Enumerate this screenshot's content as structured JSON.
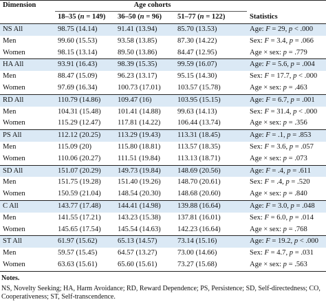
{
  "header": {
    "dimension": "Dimension",
    "age_cohorts": "Age cohorts",
    "statistics": "Statistics",
    "cohort_1": {
      "range": "18–35",
      "n_label": "n",
      "n_value": "149"
    },
    "cohort_2": {
      "range": "36–50",
      "n_label": "n",
      "n_value": "96"
    },
    "cohort_3": {
      "range": "51–77",
      "n_label": "n",
      "n_value": "122"
    }
  },
  "rows": [
    {
      "label": "NS All",
      "c1": "98.75 (14.14)",
      "c2": "91.41 (13.94)",
      "c3": "85.70 (13.53)",
      "stat_pre": "Age: ",
      "stat_var": "F",
      "stat_mid": " = 29, ",
      "stat_var2": "p",
      "stat_post": " < .000",
      "shade": true
    },
    {
      "label": "Men",
      "c1": "99.60 (15.53)",
      "c2": "93.58 (13.85)",
      "c3": "87.30 (14.22)",
      "stat_pre": "Sex: ",
      "stat_var": "F",
      "stat_mid": " = 3.4, ",
      "stat_var2": "p",
      "stat_post": " = .066",
      "shade": false
    },
    {
      "label": "Women",
      "c1": "98.15 (13.14)",
      "c2": "89.50 (13.86)",
      "c3": "84.47 (12.95)",
      "stat_pre": "Age × sex: ",
      "stat_var": "",
      "stat_mid": "",
      "stat_var2": "p",
      "stat_post": " = .779",
      "shade": false
    },
    {
      "label": "HA All",
      "c1": "93.91 (16.43)",
      "c2": "98.39 (15.35)",
      "c3": "99.59 (16.07)",
      "stat_pre": "Age: ",
      "stat_var": "F",
      "stat_mid": " = 5.6, ",
      "stat_var2": "p",
      "stat_post": " = .004",
      "shade": true
    },
    {
      "label": "Men",
      "c1": "88.47 (15.09)",
      "c2": "96.23 (13.17)",
      "c3": "95.15 (14.30)",
      "stat_pre": "Sex: ",
      "stat_var": "F",
      "stat_mid": " = 17.7, ",
      "stat_var2": "p",
      "stat_post": " < .000",
      "shade": false
    },
    {
      "label": "Women",
      "c1": "97.69 (16.34)",
      "c2": "100.73 (17.01)",
      "c3": "103.57 (15.78)",
      "stat_pre": "Age × sex: ",
      "stat_var": "",
      "stat_mid": "",
      "stat_var2": "p",
      "stat_post": " = .463",
      "shade": false
    },
    {
      "label": "RD All",
      "c1": "110.79 (14.86)",
      "c2": "109.47 (16)",
      "c3": "103.95 (15.15)",
      "stat_pre": "Age: ",
      "stat_var": "F",
      "stat_mid": " = 6.7, ",
      "stat_var2": "p",
      "stat_post": " = .001",
      "shade": true
    },
    {
      "label": "Men",
      "c1": "104.31 (15.48)",
      "c2": "101.41 (14.88)",
      "c3": "99.63 (14.13)",
      "stat_pre": "Sex: ",
      "stat_var": "F",
      "stat_mid": " = 31.4, ",
      "stat_var2": "p",
      "stat_post": " < .000",
      "shade": false
    },
    {
      "label": "Women",
      "c1": "115.29 (12.47)",
      "c2": "117.81 (14.22)",
      "c3": "106.44 (13.74)",
      "stat_pre": "Age × sex: ",
      "stat_var": "",
      "stat_mid": "",
      "stat_var2": "p",
      "stat_post": " = .356",
      "shade": false
    },
    {
      "label": "PS All",
      "c1": "112.12 (20.25)",
      "c2": "113.29 (19.43)",
      "c3": "113.31 (18.45)",
      "stat_pre": "Age: ",
      "stat_var": "F",
      "stat_mid": " = .1, ",
      "stat_var2": "p",
      "stat_post": " = .853",
      "shade": true
    },
    {
      "label": "Men",
      "c1": "115.09 (20)",
      "c2": "115.80 (18.81)",
      "c3": "113.57 (18.35)",
      "stat_pre": "Sex: ",
      "stat_var": "F",
      "stat_mid": " = 3.6, ",
      "stat_var2": "p",
      "stat_post": " = .057",
      "shade": false
    },
    {
      "label": "Women",
      "c1": "110.06 (20.27)",
      "c2": "111.51 (19.84)",
      "c3": "113.13 (18.71)",
      "stat_pre": "Age × sex: ",
      "stat_var": "",
      "stat_mid": "",
      "stat_var2": "p",
      "stat_post": " = .073",
      "shade": false
    },
    {
      "label": "SD All",
      "c1": "151.07 (20.29)",
      "c2": "149.73 (19.84)",
      "c3": "148.69 (20.56)",
      "stat_pre": "Age: ",
      "stat_var": "F",
      "stat_mid": " = .4, ",
      "stat_var2": "p",
      "stat_post": " = .611",
      "shade": true
    },
    {
      "label": "Men",
      "c1": "151.75 (19.28)",
      "c2": "151.40 (19.26)",
      "c3": "148.70 (20.61)",
      "stat_pre": "Sex: ",
      "stat_var": "F",
      "stat_mid": " = .4, ",
      "stat_var2": "p",
      "stat_post": " = .520",
      "shade": false
    },
    {
      "label": "Women",
      "c1": "150.59 (21.04)",
      "c2": "148.54 (20.30)",
      "c3": "148.68 (20.60)",
      "stat_pre": "Age × sex: ",
      "stat_var": "",
      "stat_mid": "",
      "stat_var2": "p",
      "stat_post": " = .840",
      "shade": false
    },
    {
      "label": "C All",
      "c1": "143.77 (17.48)",
      "c2": "144.41 (14.98)",
      "c3": "139.88 (16.64)",
      "stat_pre": "Age: ",
      "stat_var": "F",
      "stat_mid": " = 3.0, ",
      "stat_var2": "p",
      "stat_post": " = .048",
      "shade": true
    },
    {
      "label": "Men",
      "c1": "141.55 (17.21)",
      "c2": "143.23 (15.38)",
      "c3": "137.81 (16.01)",
      "stat_pre": "Sex: ",
      "stat_var": "F",
      "stat_mid": " = 6.0, ",
      "stat_var2": "p",
      "stat_post": " = .014",
      "shade": false
    },
    {
      "label": "Women",
      "c1": "145.65 (17.54)",
      "c2": "145.54 (14.63)",
      "c3": "142.23 (16.64)",
      "stat_pre": "Age × sex: ",
      "stat_var": "",
      "stat_mid": "",
      "stat_var2": "p",
      "stat_post": " = .768",
      "shade": false
    },
    {
      "label": "ST All",
      "c1": "61.97 (15.62)",
      "c2": "65.13 (14.57)",
      "c3": "73.14 (15.16)",
      "stat_pre": "Age: ",
      "stat_var": "F",
      "stat_mid": " = 19.2, ",
      "stat_var2": "p",
      "stat_post": " < .000",
      "shade": true
    },
    {
      "label": "Men",
      "c1": "59.57 (15.45)",
      "c2": "64.57 (13.27)",
      "c3": "73.00 (14.66)",
      "stat_pre": "Sex: ",
      "stat_var": "F",
      "stat_mid": " = 4.7, ",
      "stat_var2": "p",
      "stat_post": " = .031",
      "shade": false
    },
    {
      "label": "Women",
      "c1": "63.63 (15.61)",
      "c2": "65.60 (15.61)",
      "c3": "73.27 (15.68)",
      "stat_pre": "Age × sex: ",
      "stat_var": "",
      "stat_mid": "",
      "stat_var2": "p",
      "stat_post": " = .563",
      "shade": false
    }
  ],
  "notes": {
    "title": "Notes.",
    "text": "NS, Novelty Seeking; HA, Harm Avoidance; RD, Reward Dependence; PS, Persistence; SD, Self-directedness; CO, Cooperativeness; ST, Self-transcendence."
  },
  "colors": {
    "shade": "#dbe9f5",
    "rule": "#222222"
  }
}
